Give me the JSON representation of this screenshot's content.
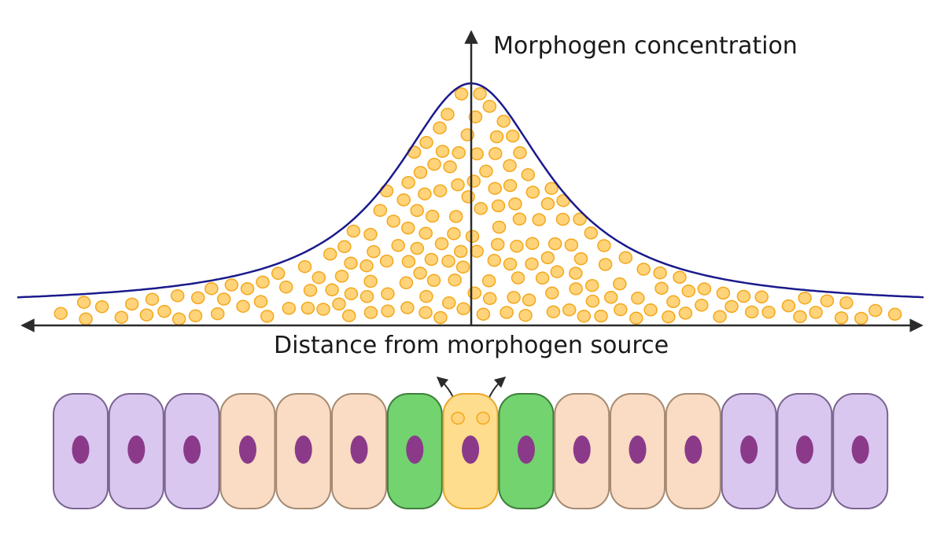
{
  "labels": {
    "y_axis": "Morphogen concentration",
    "x_axis": "Distance from morphogen source"
  },
  "colors": {
    "curve": "#1a1a8c",
    "axis": "#2b2b2b",
    "particle_fill": "#ffd37a",
    "particle_stroke": "#f2a81c",
    "nucleus": "#8b3a8a",
    "cell_types": {
      "far": {
        "fill": "#d9c7ef",
        "stroke": "#7a6491"
      },
      "middle": {
        "fill": "#f9dcc3",
        "stroke": "#a58a72"
      },
      "near": {
        "fill": "#72d36f",
        "stroke": "#3e7f3b"
      },
      "source": {
        "fill": "#ffdd8e",
        "stroke": "#e8a92b"
      }
    }
  },
  "cells": [
    "far",
    "far",
    "far",
    "middle",
    "middle",
    "middle",
    "near",
    "source",
    "near",
    "middle",
    "middle",
    "middle",
    "far",
    "far",
    "far"
  ],
  "source_cell_index": 7,
  "gradient_shape": "peaked at the source, decaying with distance on both sides"
}
